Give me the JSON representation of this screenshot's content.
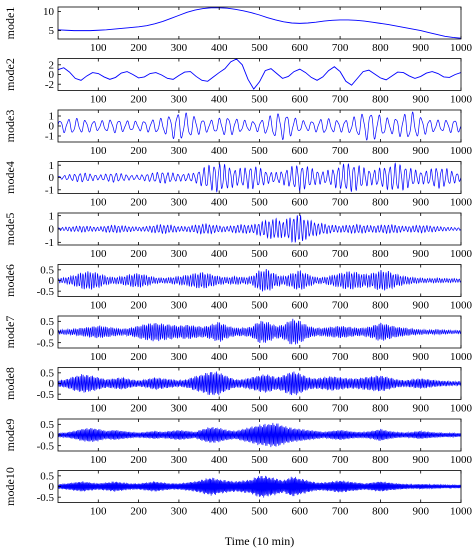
{
  "chart_data": {
    "type": "line",
    "xlabel": "Time (10 min)",
    "x_ticks": [
      "100",
      "200",
      "300",
      "400",
      "500",
      "600",
      "700",
      "800",
      "900",
      "1000"
    ],
    "xlim": [
      0,
      1000
    ],
    "line_color": "#0000ff",
    "panels": [
      {
        "ylabel": "mode1",
        "ylim": [
          2.8,
          11.2
        ],
        "y_ticks": [
          "5",
          "10"
        ],
        "y_tick_values": [
          5,
          10
        ],
        "series": [
          {
            "values": [
              5.2,
              5.1,
              5.0,
              5.0,
              5.0,
              5.1,
              5.2,
              5.4,
              5.6,
              5.8,
              6.0,
              6.3,
              6.8,
              7.4,
              8.2,
              9.0,
              9.8,
              10.4,
              10.8,
              11.0,
              11.0,
              10.9,
              10.6,
              10.2,
              9.7,
              9.1,
              8.4,
              7.8,
              7.3,
              7.0,
              6.9,
              7.0,
              7.2,
              7.5,
              7.7,
              7.8,
              7.8,
              7.7,
              7.5,
              7.2,
              6.9,
              6.6,
              6.2,
              5.8,
              5.4,
              5.0,
              4.5,
              4.0,
              3.5,
              3.2,
              3.0
            ]
          }
        ]
      },
      {
        "ylabel": "mode2",
        "ylim": [
          -3.3,
          3.3
        ],
        "y_ticks": [
          "2",
          "0",
          "-2"
        ],
        "y_tick_values": [
          2,
          0,
          -2
        ],
        "series": [
          {
            "values": [
              1.0,
              1.4,
              0.5,
              -0.8,
              -1.2,
              -0.3,
              0.4,
              0.2,
              -0.5,
              -1.0,
              -0.6,
              0.3,
              0.6,
              0.0,
              -0.7,
              -0.5,
              0.2,
              0.4,
              -0.1,
              -0.8,
              -1.0,
              -0.2,
              0.5,
              0.6,
              -0.4,
              -1.2,
              -1.4,
              -0.5,
              0.4,
              1.2,
              2.6,
              3.2,
              2.0,
              -1.0,
              -3.0,
              -1.5,
              0.8,
              1.2,
              0.2,
              -0.8,
              -0.4,
              0.6,
              1.1,
              0.4,
              -0.6,
              -1.2,
              -0.5,
              0.8,
              1.6,
              0.6,
              -1.4,
              -2.2,
              -0.8,
              0.6,
              0.9,
              0.1,
              -0.7,
              -1.1,
              -0.3,
              0.5,
              0.4,
              -0.3,
              -0.8,
              -0.4,
              0.3,
              0.6,
              0.2,
              -0.5,
              -0.6,
              0.0,
              0.4
            ]
          }
        ]
      },
      {
        "ylabel": "mode3",
        "ylim": [
          -1.6,
          1.6
        ],
        "y_ticks": [
          "1",
          "0",
          "-1"
        ],
        "y_tick_values": [
          1,
          0,
          -1
        ],
        "cycles": 48,
        "envelope": [
          0.6,
          0.7,
          0.8,
          0.7,
          0.6,
          0.5,
          0.6,
          0.7,
          0.6,
          0.5,
          0.5,
          0.6,
          0.7,
          0.8,
          1.2,
          1.4,
          1.3,
          1.0,
          0.7,
          0.6,
          0.8,
          1.0,
          0.8,
          0.6,
          0.5,
          0.6,
          0.9,
          1.3,
          1.4,
          1.0,
          0.6,
          0.5,
          0.6,
          0.8,
          0.7,
          0.6,
          0.7,
          1.0,
          1.4,
          1.5,
          1.1,
          0.8,
          0.9,
          1.3,
          1.4,
          1.0,
          0.7,
          0.6,
          0.6,
          0.7,
          0.6
        ]
      },
      {
        "ylabel": "mode4",
        "ylim": [
          -1.3,
          1.3
        ],
        "y_ticks": [
          "1",
          "0",
          "-1"
        ],
        "y_tick_values": [
          1,
          0,
          -1
        ],
        "cycles": 78,
        "envelope": [
          0.1,
          0.2,
          0.3,
          0.4,
          0.3,
          0.2,
          0.3,
          0.4,
          0.3,
          0.2,
          0.2,
          0.3,
          0.4,
          0.5,
          0.4,
          0.3,
          0.3,
          0.4,
          0.8,
          1.1,
          1.2,
          1.0,
          0.7,
          0.8,
          1.0,
          0.8,
          0.5,
          0.4,
          0.6,
          0.9,
          1.1,
          0.9,
          0.6,
          0.5,
          0.7,
          1.0,
          1.2,
          1.1,
          0.8,
          0.6,
          0.8,
          1.0,
          1.2,
          1.0,
          0.7,
          0.5,
          0.6,
          0.9,
          0.8,
          0.5,
          0.3
        ]
      },
      {
        "ylabel": "mode5",
        "ylim": [
          -1.2,
          1.2
        ],
        "y_ticks": [
          "1",
          "0",
          "-1"
        ],
        "y_tick_values": [
          1,
          0,
          -1
        ],
        "cycles": 115,
        "envelope": [
          0.1,
          0.15,
          0.2,
          0.25,
          0.2,
          0.15,
          0.25,
          0.3,
          0.25,
          0.2,
          0.15,
          0.2,
          0.3,
          0.35,
          0.3,
          0.2,
          0.2,
          0.3,
          0.4,
          0.35,
          0.25,
          0.2,
          0.3,
          0.35,
          0.3,
          0.5,
          0.7,
          0.8,
          0.6,
          1.0,
          1.1,
          0.7,
          0.5,
          0.4,
          0.3,
          0.25,
          0.3,
          0.35,
          0.3,
          0.25,
          0.3,
          0.35,
          0.3,
          0.2,
          0.25,
          0.3,
          0.25,
          0.2,
          0.15,
          0.12,
          0.1
        ]
      },
      {
        "ylabel": "mode6",
        "ylim": [
          -0.75,
          0.75
        ],
        "y_ticks": [
          "0.5",
          "0",
          "-0.5"
        ],
        "y_tick_values": [
          0.5,
          0,
          -0.5
        ],
        "cycles": 165,
        "envelope": [
          0.1,
          0.15,
          0.25,
          0.4,
          0.45,
          0.35,
          0.2,
          0.15,
          0.2,
          0.3,
          0.35,
          0.25,
          0.15,
          0.12,
          0.15,
          0.2,
          0.25,
          0.35,
          0.4,
          0.3,
          0.2,
          0.15,
          0.2,
          0.15,
          0.2,
          0.5,
          0.55,
          0.3,
          0.2,
          0.35,
          0.5,
          0.3,
          0.15,
          0.15,
          0.25,
          0.35,
          0.45,
          0.4,
          0.3,
          0.35,
          0.5,
          0.45,
          0.3,
          0.2,
          0.15,
          0.12,
          0.1,
          0.12,
          0.1,
          0.1,
          0.08
        ]
      },
      {
        "ylabel": "mode7",
        "ylim": [
          -0.75,
          0.75
        ],
        "y_ticks": [
          "0.5",
          "0",
          "-0.5"
        ],
        "y_tick_values": [
          0.5,
          0,
          -0.5
        ],
        "cycles": 215,
        "envelope": [
          0.1,
          0.12,
          0.15,
          0.2,
          0.25,
          0.3,
          0.25,
          0.2,
          0.15,
          0.2,
          0.3,
          0.4,
          0.45,
          0.4,
          0.35,
          0.3,
          0.35,
          0.3,
          0.25,
          0.35,
          0.5,
          0.3,
          0.2,
          0.2,
          0.25,
          0.55,
          0.5,
          0.3,
          0.35,
          0.65,
          0.55,
          0.3,
          0.2,
          0.2,
          0.25,
          0.3,
          0.25,
          0.2,
          0.2,
          0.3,
          0.45,
          0.35,
          0.25,
          0.2,
          0.15,
          0.12,
          0.1,
          0.12,
          0.1,
          0.08,
          0.08
        ]
      },
      {
        "ylabel": "mode8",
        "ylim": [
          -0.75,
          0.75
        ],
        "y_ticks": [
          "0.5",
          "0",
          "-0.5"
        ],
        "y_tick_values": [
          0.5,
          0,
          -0.5
        ],
        "cycles": 260,
        "envelope": [
          0.15,
          0.2,
          0.35,
          0.45,
          0.4,
          0.3,
          0.2,
          0.25,
          0.3,
          0.2,
          0.15,
          0.2,
          0.3,
          0.25,
          0.2,
          0.15,
          0.2,
          0.35,
          0.45,
          0.6,
          0.55,
          0.35,
          0.2,
          0.2,
          0.3,
          0.4,
          0.45,
          0.3,
          0.4,
          0.6,
          0.5,
          0.3,
          0.25,
          0.3,
          0.35,
          0.3,
          0.25,
          0.25,
          0.3,
          0.35,
          0.4,
          0.3,
          0.2,
          0.15,
          0.2,
          0.25,
          0.2,
          0.15,
          0.12,
          0.1,
          0.1
        ]
      },
      {
        "ylabel": "mode9",
        "ylim": [
          -0.75,
          0.75
        ],
        "y_ticks": [
          "0.5",
          "0",
          "-0.5"
        ],
        "y_tick_values": [
          0.5,
          0,
          -0.5
        ],
        "cycles": 310,
        "envelope": [
          0.1,
          0.12,
          0.2,
          0.3,
          0.35,
          0.3,
          0.2,
          0.25,
          0.2,
          0.15,
          0.12,
          0.15,
          0.2,
          0.15,
          0.2,
          0.25,
          0.2,
          0.15,
          0.3,
          0.4,
          0.35,
          0.25,
          0.2,
          0.3,
          0.4,
          0.5,
          0.55,
          0.6,
          0.45,
          0.35,
          0.3,
          0.25,
          0.2,
          0.15,
          0.2,
          0.25,
          0.2,
          0.15,
          0.15,
          0.2,
          0.3,
          0.2,
          0.15,
          0.12,
          0.15,
          0.2,
          0.15,
          0.12,
          0.1,
          0.1,
          0.08
        ]
      },
      {
        "ylabel": "mode10",
        "ylim": [
          -0.75,
          0.75
        ],
        "y_ticks": [
          "0.5",
          "0",
          "-0.5"
        ],
        "y_tick_values": [
          0.5,
          0,
          -0.5
        ],
        "cycles": 360,
        "envelope": [
          0.1,
          0.15,
          0.2,
          0.25,
          0.2,
          0.15,
          0.2,
          0.25,
          0.2,
          0.15,
          0.15,
          0.2,
          0.25,
          0.2,
          0.15,
          0.15,
          0.2,
          0.25,
          0.35,
          0.45,
          0.35,
          0.3,
          0.25,
          0.3,
          0.35,
          0.55,
          0.5,
          0.4,
          0.3,
          0.5,
          0.4,
          0.3,
          0.2,
          0.2,
          0.25,
          0.3,
          0.25,
          0.2,
          0.15,
          0.2,
          0.25,
          0.2,
          0.15,
          0.12,
          0.1,
          0.12,
          0.1,
          0.1,
          0.08,
          0.08,
          0.08
        ]
      }
    ]
  }
}
